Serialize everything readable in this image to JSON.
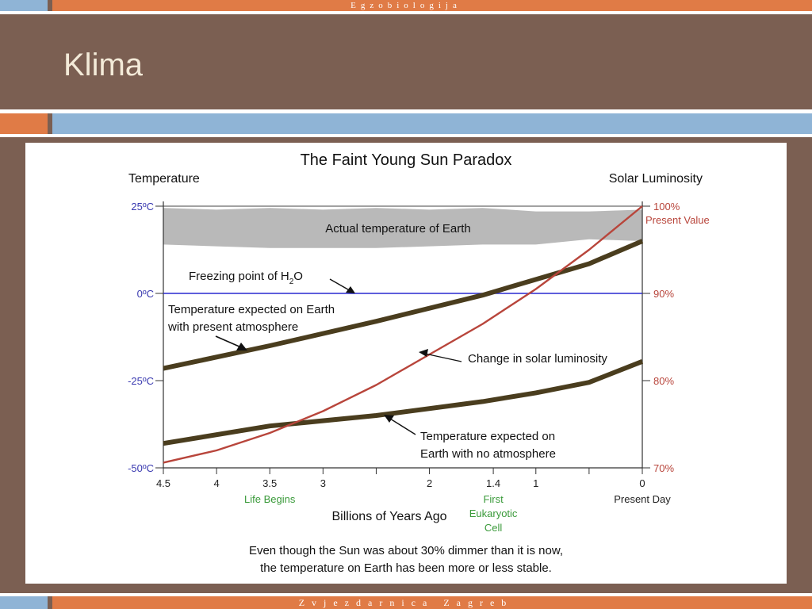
{
  "slide": {
    "header": "Egzobiologija",
    "title": "Klima",
    "footer": "Zvjezdarnica Zagreb"
  },
  "colors": {
    "background": "#7b5f52",
    "accent_orange": "#e07b46",
    "accent_blue": "#8fb4d6",
    "temperature_line": "#4a3d1e",
    "luminosity_line": "#b8453b",
    "freezing_line": "#2a2ad0",
    "actual_band": "#b9b9b9",
    "label_blue": "#3a3ab0",
    "label_red": "#b8453b",
    "label_green": "#3a9a3a"
  },
  "chart_data": {
    "type": "line",
    "title": "The Faint Young Sun Paradox",
    "xlabel": "Billions of Years Ago",
    "xlim": [
      4.5,
      0
    ],
    "left_axis": {
      "label": "Temperature",
      "ylim": [
        -50,
        25
      ],
      "ticks": [
        {
          "value": 25,
          "label": "25ºC"
        },
        {
          "value": 0,
          "label": "0ºC"
        },
        {
          "value": -25,
          "label": "-25ºC"
        },
        {
          "value": -50,
          "label": "-50ºC"
        }
      ]
    },
    "right_axis": {
      "label": "Solar Luminosity",
      "ylim": [
        70,
        100
      ],
      "ticks": [
        {
          "value": 100,
          "label": "100%"
        },
        {
          "value": 90,
          "label": "90%"
        },
        {
          "value": 80,
          "label": "80%"
        },
        {
          "value": 70,
          "label": "70%"
        }
      ],
      "top_note": "Present Value"
    },
    "x_ticks": [
      {
        "value": 4.5,
        "label": "4.5"
      },
      {
        "value": 4,
        "label": "4"
      },
      {
        "value": 3.5,
        "label": "3.5"
      },
      {
        "value": 3,
        "label": "3"
      },
      {
        "value": 2.5,
        "label": ""
      },
      {
        "value": 2,
        "label": "2"
      },
      {
        "value": 1.4,
        "label": "1.4"
      },
      {
        "value": 1,
        "label": "1"
      },
      {
        "value": 0.5,
        "label": ""
      },
      {
        "value": 0,
        "label": "0"
      }
    ],
    "x_annotations": [
      {
        "x": 3.5,
        "text": "Life Begins"
      },
      {
        "x": 1.4,
        "text": "First Eukaryotic Cell"
      },
      {
        "x": 0,
        "text": "Present Day"
      }
    ],
    "series": [
      {
        "name": "Temperature expected on Earth with present atmosphere",
        "axis": "left",
        "x": [
          4.5,
          3.5,
          2.5,
          1.5,
          0.5,
          0
        ],
        "y": [
          -21.5,
          -15,
          -8,
          -0.5,
          8.5,
          15
        ]
      },
      {
        "name": "Temperature expected on Earth with no atmosphere",
        "axis": "left",
        "x": [
          4.5,
          3.5,
          2.5,
          1.5,
          1.0,
          0.5,
          0
        ],
        "y": [
          -43,
          -38,
          -35,
          -31,
          -28.5,
          -25.5,
          -19.5
        ]
      },
      {
        "name": "Change in solar luminosity",
        "axis": "right",
        "x": [
          4.5,
          4.0,
          3.5,
          3.0,
          2.5,
          2.0,
          1.5,
          1.0,
          0.5,
          0
        ],
        "y": [
          70.6,
          72.0,
          74.0,
          76.5,
          79.5,
          83.0,
          86.5,
          90.5,
          95.0,
          100.0
        ]
      },
      {
        "name": "Freezing point of H2O",
        "axis": "left",
        "x": [
          4.5,
          0
        ],
        "y": [
          0,
          0
        ]
      }
    ],
    "band": {
      "name": "Actual temperature of Earth",
      "axis": "left",
      "x": [
        4.5,
        4.0,
        3.5,
        3.0,
        2.5,
        2.0,
        1.5,
        1.0,
        0.5,
        0
      ],
      "upper": [
        24.5,
        24,
        24.5,
        24,
        24.5,
        24,
        24.5,
        23.5,
        23.5,
        24
      ],
      "lower": [
        14,
        13.5,
        13,
        13,
        13,
        13.5,
        14,
        14,
        15.5,
        15
      ]
    },
    "annotations": {
      "actual": "Actual temperature of Earth",
      "freezing": "Freezing point of H",
      "freezing_sub": "2",
      "freezing_end": "O",
      "present_atm_1": "Temperature expected on Earth",
      "present_atm_2": "with present atmosphere",
      "luminosity": "Change in solar luminosity",
      "no_atm_1": "Temperature expected on",
      "no_atm_2": "Earth with no atmosphere"
    },
    "caption": [
      "Even though the Sun was about 30% dimmer than it is now,",
      "the temperature on Earth has been more or less stable."
    ]
  }
}
